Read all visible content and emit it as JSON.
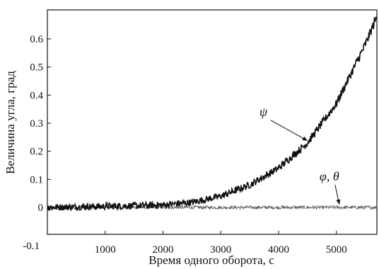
{
  "chart_data": {
    "type": "line",
    "xlabel": "Время одного оборота, с",
    "ylabel": "Величина угла, град",
    "xlim": [
      0,
      5700
    ],
    "ylim": [
      -0.1,
      0.7
    ],
    "x_ticks": [
      1000,
      2000,
      3000,
      4000,
      5000
    ],
    "x_tick_labels": [
      "1000",
      "2000",
      "3000",
      "4000",
      "5000"
    ],
    "y_ticks": [
      0,
      0.1,
      0.2,
      0.3,
      0.4,
      0.5,
      0.6
    ],
    "y_tick_labels": [
      "0",
      "0.1",
      "0.2",
      "0.3",
      "0.4",
      "0.5",
      "0.6"
    ],
    "corner_label": "-0.1",
    "grid": false,
    "series": [
      {
        "name": "ψ",
        "color": "#111111",
        "noise": 0.012,
        "x": [
          0,
          500,
          1000,
          1500,
          2000,
          2500,
          3000,
          3500,
          4000,
          4500,
          5000,
          5500,
          5700
        ],
        "y": [
          0.0,
          0.002,
          0.004,
          0.006,
          0.009,
          0.018,
          0.04,
          0.08,
          0.14,
          0.23,
          0.37,
          0.58,
          0.68
        ]
      },
      {
        "name": "φ, θ",
        "color": "#555555",
        "noise": 0.006,
        "x": [
          0,
          1000,
          2000,
          3000,
          4000,
          5000,
          5700
        ],
        "y": [
          0,
          0,
          0,
          0,
          0,
          0,
          0
        ]
      }
    ],
    "annotations": [
      {
        "text": "ψ",
        "x": 4500,
        "y": 0.23
      },
      {
        "text": "φ, θ",
        "x": 5050,
        "y": 0.005
      }
    ]
  }
}
